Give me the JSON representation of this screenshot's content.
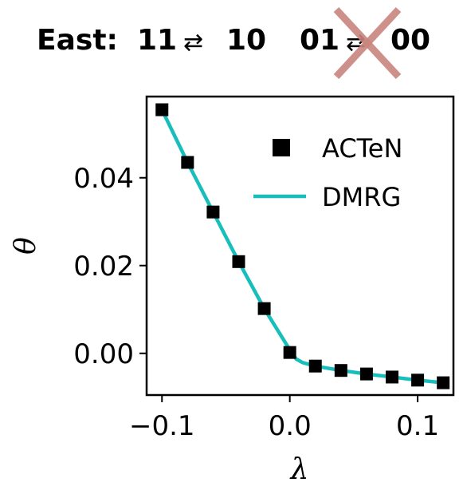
{
  "header": {
    "model": "East:",
    "rule_allowed_left": "11",
    "rule_allowed_right": "10",
    "rule_forbidden_left": "01",
    "rule_forbidden_right": "00",
    "swap_symbol": "⇄",
    "forbidden_mark_color": "#c9847e"
  },
  "chart_data": {
    "type": "line",
    "xlabel": "λ",
    "ylabel": "θ",
    "xlim": [
      -0.112,
      0.128
    ],
    "ylim": [
      -0.0095,
      0.0585
    ],
    "x_ticks": [
      -0.1,
      0.0,
      0.1
    ],
    "x_tick_labels": [
      "−0.1",
      "0.0",
      "0.1"
    ],
    "y_ticks": [
      0.0,
      0.02,
      0.04
    ],
    "y_tick_labels": [
      "0.00",
      "0.02",
      "0.04"
    ],
    "grid": false,
    "legend_placement": "top-right",
    "series": [
      {
        "name": "ACTeN",
        "kind": "markers",
        "marker": "square",
        "color": "#000000",
        "x": [
          -0.1,
          -0.08,
          -0.06,
          -0.04,
          -0.02,
          0.0,
          0.02,
          0.04,
          0.06,
          0.08,
          0.1,
          0.12
        ],
        "y": [
          0.0555,
          0.0435,
          0.0322,
          0.0209,
          0.0102,
          0.0002,
          -0.0029,
          -0.0039,
          -0.0047,
          -0.0054,
          -0.0061,
          -0.0067
        ]
      },
      {
        "name": "DMRG",
        "kind": "line",
        "color": "#17bebb",
        "x": [
          -0.1,
          -0.08,
          -0.06,
          -0.04,
          -0.02,
          0.0,
          0.005,
          0.01,
          0.02,
          0.04,
          0.06,
          0.08,
          0.1,
          0.12
        ],
        "y": [
          0.0555,
          0.0435,
          0.0322,
          0.0209,
          0.0102,
          0.0008,
          -0.0013,
          -0.0021,
          -0.0029,
          -0.0039,
          -0.0047,
          -0.0054,
          -0.0061,
          -0.0067
        ]
      }
    ]
  }
}
